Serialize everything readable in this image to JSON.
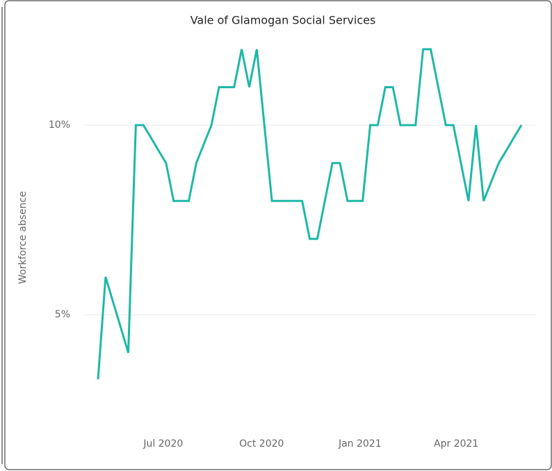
{
  "chart_data": {
    "type": "line",
    "title": "Vale of Glamogan Social Services",
    "y_label": "Workforce absence",
    "series": [
      {
        "name": "Workforce absence",
        "color": "#1eb8a6",
        "values": [
          3.3,
          6,
          5.33,
          4.67,
          4,
          10,
          10,
          9.67,
          9.33,
          9,
          8,
          8,
          8,
          9,
          9.5,
          10,
          11,
          11,
          11,
          12,
          11,
          12,
          10,
          8,
          8,
          8,
          8,
          8,
          7,
          7,
          8,
          9,
          9,
          8,
          8,
          8,
          10,
          10,
          11,
          11,
          10,
          10,
          10,
          12,
          12,
          11,
          10,
          10,
          9,
          8,
          10,
          8,
          8.5,
          9,
          9.33,
          9.67,
          10
        ]
      }
    ],
    "xlim": [
      "2020-05",
      "2021-06"
    ],
    "xticks": [
      {
        "value": "2020-07",
        "label": "Jul 2020"
      },
      {
        "value": "2020-10",
        "label": "Oct 2020"
      },
      {
        "value": "2021-01",
        "label": "Jan 2021"
      },
      {
        "value": "2021-04",
        "label": "Apr 2021"
      }
    ],
    "ylim": [
      2,
      12.4
    ],
    "yticks": [
      {
        "value": 5,
        "label": "5%"
      },
      {
        "value": 10,
        "label": "10%"
      }
    ],
    "grid": true
  }
}
